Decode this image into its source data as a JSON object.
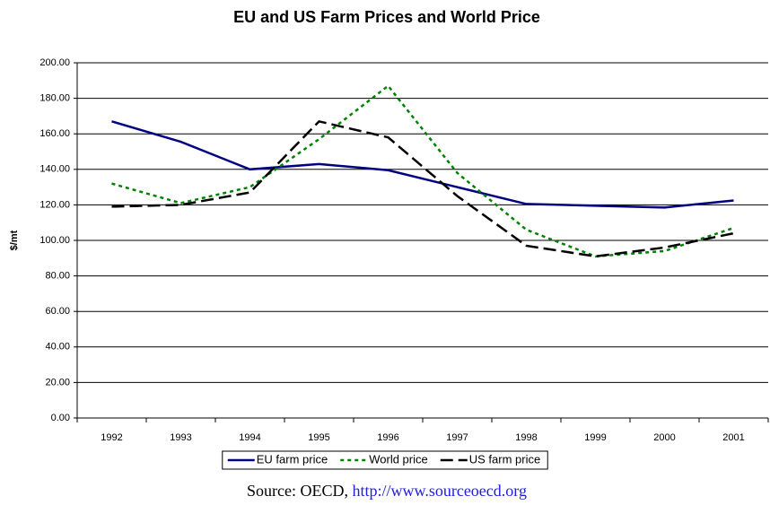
{
  "chart_data": {
    "type": "line",
    "title": "EU and US Farm Prices and World Price",
    "y_label": "$/mt",
    "categories": [
      "1992",
      "1993",
      "1994",
      "1995",
      "1996",
      "1997",
      "1998",
      "1999",
      "2000",
      "2001"
    ],
    "series": [
      {
        "name": "EU farm price",
        "color": "#000080",
        "dash": "solid",
        "values": [
          167,
          155.5,
          140,
          143,
          139.5,
          130,
          120.5,
          119.5,
          118.5,
          122.5
        ]
      },
      {
        "name": "World price",
        "color": "#008000",
        "dash": "dotted",
        "values": [
          132,
          121,
          130,
          157,
          187,
          138,
          106,
          91,
          94,
          107
        ]
      },
      {
        "name": "US farm price",
        "color": "#000000",
        "dash": "dashed",
        "values": [
          119,
          120,
          127,
          167,
          158,
          125,
          97,
          91,
          96,
          104
        ]
      }
    ],
    "ylim": [
      0,
      200
    ],
    "yticks": [
      {
        "value": 0,
        "label": "0.00"
      },
      {
        "value": 20,
        "label": "20.00"
      },
      {
        "value": 40,
        "label": "40.00"
      },
      {
        "value": 60,
        "label": "60.00"
      },
      {
        "value": 80,
        "label": "80.00"
      },
      {
        "value": 100,
        "label": "100.00"
      },
      {
        "value": 120,
        "label": "120.00"
      },
      {
        "value": 140,
        "label": "140.00"
      },
      {
        "value": 160,
        "label": "160.00"
      },
      {
        "value": 180,
        "label": "180.00"
      },
      {
        "value": 200,
        "label": "200.00"
      }
    ],
    "grid": true,
    "legend": "bottom",
    "source": {
      "text": "Source: OECD,",
      "link": "http://www.sourceoecd.org"
    }
  }
}
